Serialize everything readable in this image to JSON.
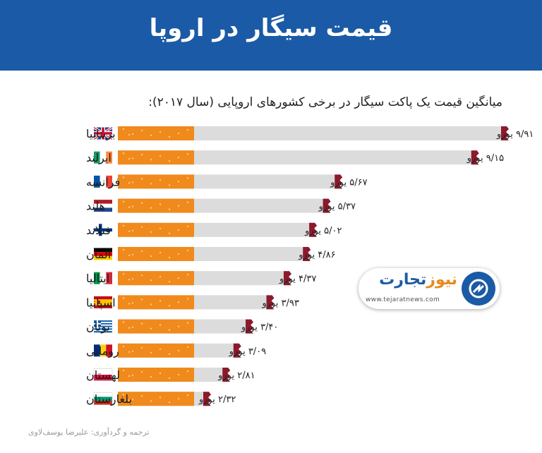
{
  "header": {
    "title": "قیمت سیگار در اروپا"
  },
  "chart_data": {
    "type": "bar",
    "title": "میانگین قیمت یک پاکت سیگار در برخی کشورهای اروپایی (سال ۲۰۱۷):",
    "unit": "یورو",
    "categories": [
      "بریتانیا",
      "ایرلند",
      "فرانسه",
      "هلند",
      "فنلاند",
      "آلمان",
      "ایتالیا",
      "اسپانیا",
      "یونان",
      "رومانی",
      "لهستان",
      "بلغارستان"
    ],
    "values": [
      9.91,
      9.15,
      5.67,
      5.37,
      5.02,
      4.86,
      4.37,
      3.93,
      3.4,
      3.09,
      2.81,
      2.32
    ],
    "value_labels": [
      "۹/۹۱",
      "۹/۱۵",
      "۵/۶۷",
      "۵/۳۷",
      "۵/۰۲",
      "۴/۸۶",
      "۴/۳۷",
      "۳/۹۳",
      "۳/۴۰",
      "۳/۰۹",
      "۲/۸۱",
      "۲/۳۲"
    ],
    "flags": [
      "uk-flag",
      "ireland-flag",
      "france-flag",
      "netherlands-flag",
      "finland-flag",
      "germany-flag",
      "italy-flag",
      "spain-flag",
      "greece-flag",
      "romania-flag",
      "poland-flag",
      "bulgaria-flag"
    ],
    "colors": {
      "filter": "#f08a1c",
      "paper": "#dcdcdc",
      "ash": "#8b1a2b"
    }
  },
  "logo": {
    "name_part1": "تجارت",
    "name_part2": "نیوز",
    "url": "www.tejaratnews.com"
  },
  "footer": {
    "credit": "ترجمه و گردآوری: علیرضا یوسف‌لاوی"
  }
}
